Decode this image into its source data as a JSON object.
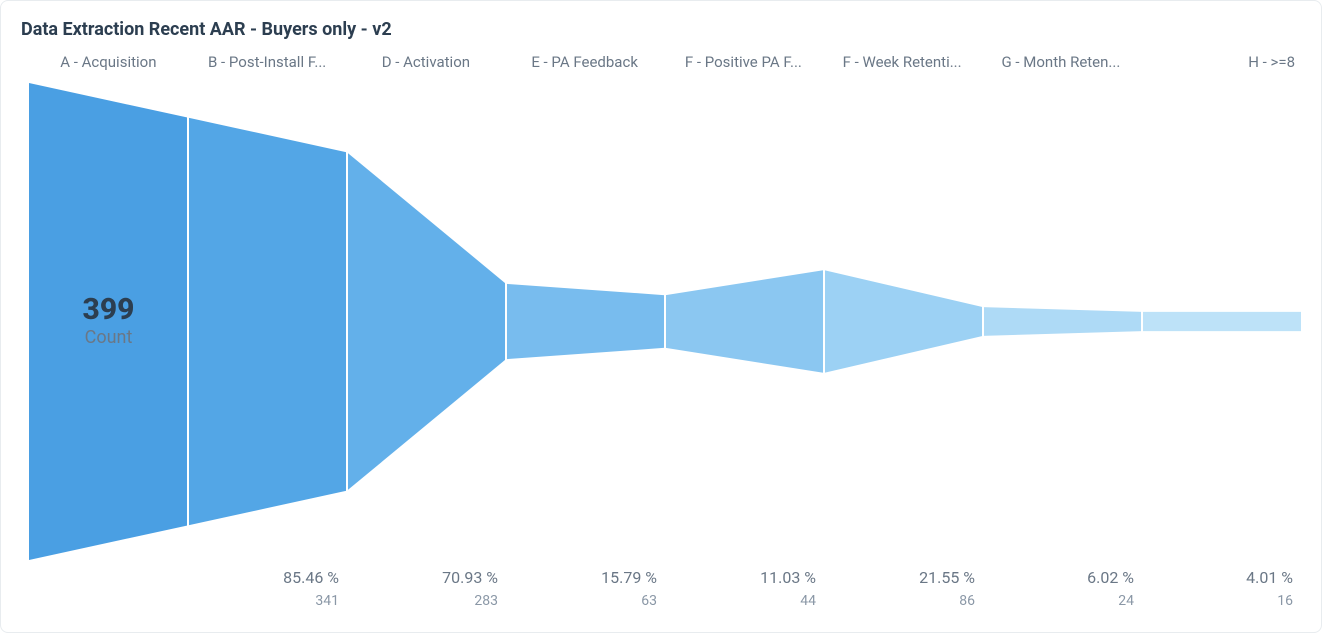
{
  "card": {
    "title": "Data Extraction Recent AAR - Buyers only - v2"
  },
  "axis": {
    "value": "399",
    "label": "Count"
  },
  "text_colors": {
    "title": "#2c3e50",
    "header": "#6a7786",
    "footer_primary": "#6a7786",
    "footer_secondary": "#8a97a6"
  },
  "funnel": {
    "type": "funnel",
    "background_color": "#ffffff",
    "separator_color": "#ffffff",
    "header_fontsize": 15,
    "footer_pct_fontsize": 16,
    "footer_cnt_fontsize": 14,
    "axis_value_fontsize": 30,
    "axis_label_fontsize": 18,
    "max_value": 399,
    "stages": [
      {
        "label": "A - Acquisition",
        "value": 399,
        "pct": "",
        "count_label": "",
        "color": "#4a9fe3"
      },
      {
        "label": "B - Post-Install F...",
        "value": 341,
        "pct": "85.46 %",
        "count_label": "341",
        "color": "#53a6e6"
      },
      {
        "label": "D - Activation",
        "value": 283,
        "pct": "70.93 %",
        "count_label": "283",
        "color": "#63b0ea"
      },
      {
        "label": "E - PA Feedback",
        "value": 63,
        "pct": "15.79 %",
        "count_label": "63",
        "color": "#78bcee"
      },
      {
        "label": "F - Positive PA F...",
        "value": 44,
        "pct": "11.03 %",
        "count_label": "44",
        "color": "#8bc7f1"
      },
      {
        "label": "F - Week Retenti...",
        "value": 86,
        "pct": "21.55 %",
        "count_label": "86",
        "color": "#9cd1f4"
      },
      {
        "label": "G - Month Reten...",
        "value": 24,
        "pct": "6.02 %",
        "count_label": "24",
        "color": "#aedaf6"
      },
      {
        "label": "H - >=8",
        "value": 16,
        "pct": "4.01 %",
        "count_label": "16",
        "color": "#bde2f8"
      }
    ]
  }
}
